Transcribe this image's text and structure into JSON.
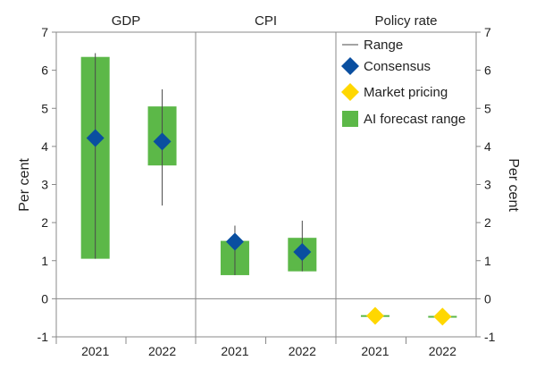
{
  "chart_data": {
    "type": "bar",
    "ylabel_left": "Per cent",
    "ylabel_right": "Per cent",
    "ylim": [
      -1,
      7
    ],
    "yticks": [
      -1,
      0,
      1,
      2,
      3,
      4,
      5,
      6,
      7
    ],
    "grid": false,
    "legend_position": "top-right",
    "colors": {
      "range": "#4a4a4a",
      "consensus": "#0a4fa0",
      "market_pricing": "#ffd700",
      "ai_forecast_range": "#5cb848",
      "axis": "#888888"
    },
    "legend": [
      {
        "key": "range",
        "label": "Range"
      },
      {
        "key": "consensus",
        "label": "Consensus"
      },
      {
        "key": "market_pricing",
        "label": "Market pricing"
      },
      {
        "key": "ai_forecast_range",
        "label": "AI forecast range"
      }
    ],
    "panels": [
      {
        "title": "GDP",
        "points": [
          {
            "year": "2021",
            "ai_low": 1.05,
            "ai_high": 6.35,
            "range_low": 1.05,
            "range_high": 6.45,
            "consensus": 4.22
          },
          {
            "year": "2022",
            "ai_low": 3.5,
            "ai_high": 5.05,
            "range_low": 2.45,
            "range_high": 5.5,
            "consensus": 4.13
          }
        ]
      },
      {
        "title": "CPI",
        "points": [
          {
            "year": "2021",
            "ai_low": 0.62,
            "ai_high": 1.52,
            "range_low": 0.62,
            "range_high": 1.92,
            "consensus": 1.5
          },
          {
            "year": "2022",
            "ai_low": 0.72,
            "ai_high": 1.6,
            "range_low": 0.72,
            "range_high": 2.05,
            "consensus": 1.23
          }
        ]
      },
      {
        "title": "Policy rate",
        "points": [
          {
            "year": "2021",
            "ai_low": -0.47,
            "ai_high": -0.43,
            "range_low": -0.47,
            "range_high": -0.43,
            "market_pricing": -0.45
          },
          {
            "year": "2022",
            "ai_low": -0.49,
            "ai_high": -0.45,
            "range_low": -0.5,
            "range_high": -0.41,
            "market_pricing": -0.47
          }
        ]
      }
    ]
  }
}
